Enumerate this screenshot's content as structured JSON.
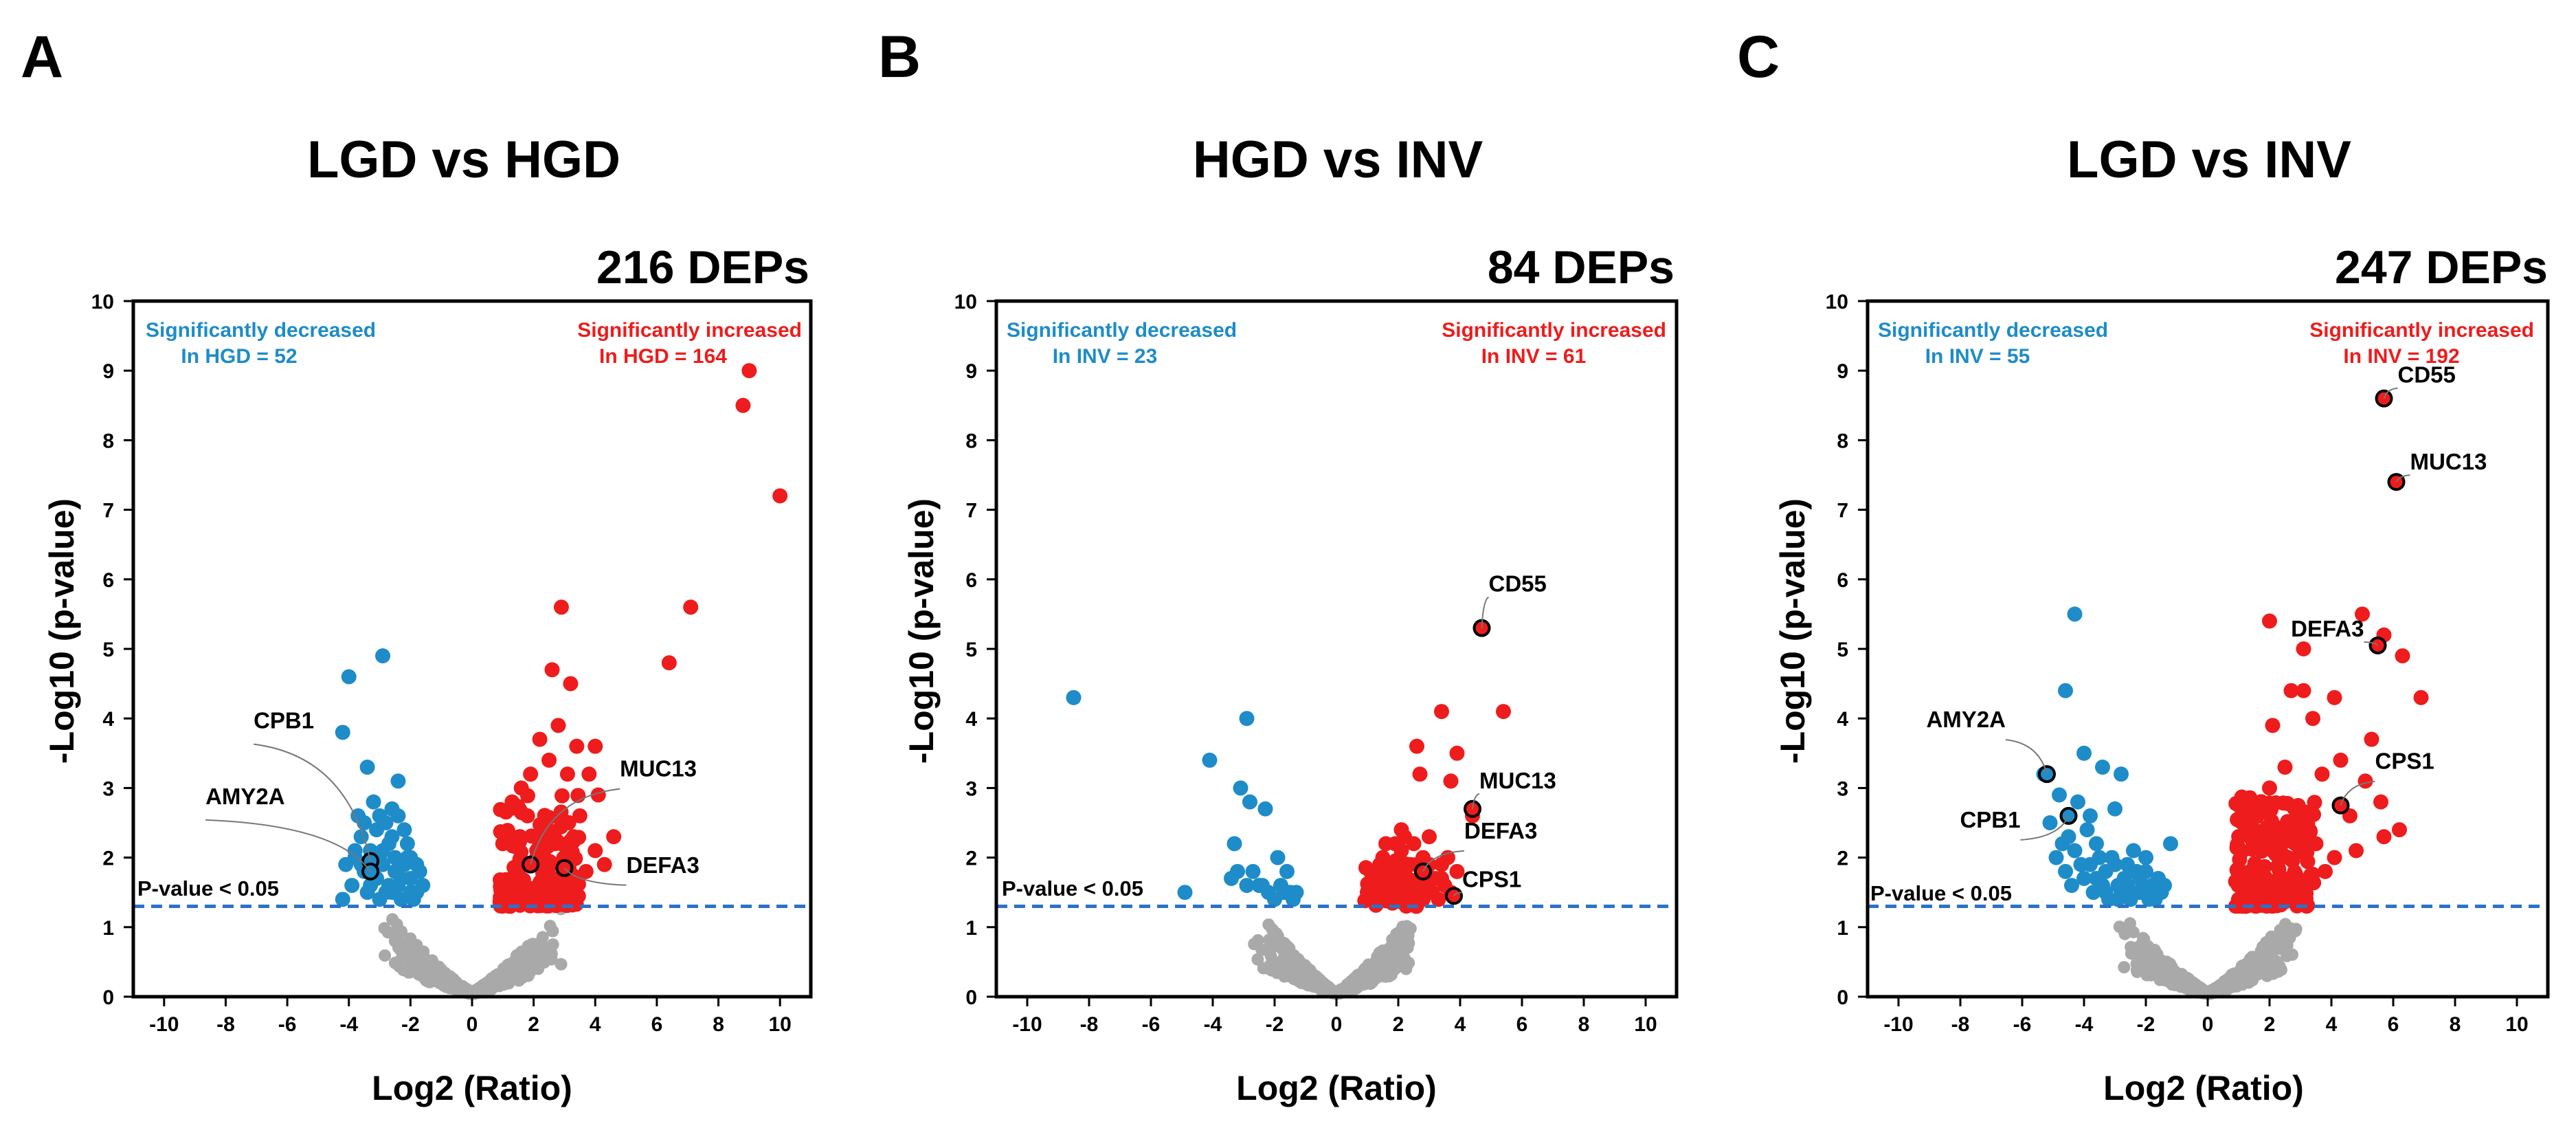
{
  "colors": {
    "decreased": "#1e8cc8",
    "increased": "#ee1c1c",
    "nonsignificant": "#a9a9a9",
    "threshold_line": "#2b73c7",
    "highlight_stroke": "#000000",
    "text": "#000000"
  },
  "chart_data": [
    {
      "type": "scatter",
      "panel": "A",
      "title": "LGD vs HGD",
      "subtitle": "216 DEPs",
      "xlabel": "Log2 (Ratio)",
      "ylabel": "-Log10 (p-value)",
      "xlim": [
        -11,
        11
      ],
      "ylim": [
        0,
        10
      ],
      "xticks": [
        -10,
        -8,
        -6,
        -4,
        -2,
        0,
        2,
        4,
        6,
        8,
        10
      ],
      "yticks": [
        0,
        1,
        2,
        3,
        4,
        5,
        6,
        7,
        8,
        9,
        10
      ],
      "threshold": {
        "y": 1.3,
        "label": "P-value < 0.05"
      },
      "legend_decreased": {
        "line1": "Significantly decreased",
        "line2": "In HGD = 52"
      },
      "legend_increased": {
        "line1": "Significantly increased",
        "line2": "In HGD = 164"
      },
      "cloud_x_max": 3.0,
      "decreased_points": [
        [
          -4.0,
          4.6
        ],
        [
          -2.9,
          4.9
        ],
        [
          -4.2,
          3.8
        ],
        [
          -3.4,
          3.3
        ],
        [
          -3.0,
          2.6
        ],
        [
          -2.6,
          2.7
        ],
        [
          -2.2,
          2.4
        ],
        [
          -3.6,
          2.3
        ],
        [
          -2.4,
          3.1
        ],
        [
          -3.8,
          2.0
        ],
        [
          -4.1,
          1.9
        ],
        [
          -2.1,
          2.0
        ],
        [
          -1.8,
          1.9
        ],
        [
          -3.3,
          2.1
        ],
        [
          -2.7,
          2.2
        ],
        [
          -2.5,
          1.8
        ],
        [
          -3.9,
          1.6
        ],
        [
          -4.2,
          1.4
        ],
        [
          -2.0,
          1.5
        ],
        [
          -1.6,
          1.6
        ],
        [
          -2.8,
          1.5
        ],
        [
          -3.1,
          1.7
        ],
        [
          -3.5,
          1.8
        ],
        [
          -2.3,
          1.7
        ],
        [
          -2.9,
          1.9
        ],
        [
          -3.7,
          2.6
        ],
        [
          -3.2,
          2.8
        ],
        [
          -2.6,
          2.3
        ],
        [
          -1.9,
          1.4
        ],
        [
          -2.4,
          1.6
        ],
        [
          -3.0,
          1.4
        ],
        [
          -3.4,
          1.5
        ],
        [
          -2.2,
          1.9
        ],
        [
          -2.8,
          2.5
        ],
        [
          -3.6,
          1.9
        ],
        [
          -2.5,
          2.0
        ],
        [
          -1.7,
          1.8
        ],
        [
          -2.1,
          2.2
        ],
        [
          -3.3,
          1.6
        ],
        [
          -2.0,
          1.7
        ],
        [
          -3.8,
          2.1
        ],
        [
          -2.7,
          1.6
        ],
        [
          -3.1,
          2.4
        ],
        [
          -2.3,
          1.4
        ],
        [
          -2.9,
          2.1
        ],
        [
          -3.5,
          2.5
        ],
        [
          -2.6,
          1.5
        ],
        [
          -1.8,
          1.5
        ],
        [
          -3.0,
          2.0
        ],
        [
          -2.4,
          2.6
        ],
        [
          -3.2,
          1.9
        ],
        [
          -2.0,
          2.0
        ]
      ],
      "increased_points": [
        [
          9.0,
          9.0
        ],
        [
          8.8,
          8.5
        ],
        [
          10.0,
          7.2
        ],
        [
          2.9,
          5.6
        ],
        [
          7.1,
          5.6
        ],
        [
          6.4,
          4.8
        ],
        [
          2.6,
          4.7
        ],
        [
          3.2,
          4.5
        ],
        [
          2.8,
          3.9
        ],
        [
          3.4,
          3.6
        ],
        [
          4.0,
          3.6
        ],
        [
          2.2,
          3.7
        ],
        [
          2.5,
          3.4
        ],
        [
          3.1,
          3.2
        ],
        [
          3.8,
          3.2
        ],
        [
          1.9,
          3.2
        ],
        [
          1.6,
          3.0
        ],
        [
          4.1,
          2.9
        ],
        [
          1.3,
          2.8
        ],
        [
          3.5,
          2.6
        ],
        [
          2.3,
          2.5
        ],
        [
          4.6,
          2.3
        ],
        [
          1.0,
          2.2
        ],
        [
          4.0,
          2.1
        ],
        [
          3.7,
          1.8
        ],
        [
          3.0,
          1.6
        ],
        [
          4.3,
          1.9
        ],
        [
          1.5,
          1.6
        ],
        [
          2.7,
          2.2
        ],
        [
          3.3,
          2.3
        ],
        [
          1.8,
          2.6
        ],
        [
          2.1,
          2.1
        ]
      ],
      "highlights": [
        {
          "label": "CPB1",
          "x": -3.3,
          "y": 1.95
        },
        {
          "label": "AMY2A",
          "x": -3.3,
          "y": 1.8
        },
        {
          "label": "MUC13",
          "x": 1.9,
          "y": 1.9
        },
        {
          "label": "DEFA3",
          "x": 3.0,
          "y": 1.85
        }
      ]
    },
    {
      "type": "scatter",
      "panel": "B",
      "title": "HGD vs INV",
      "subtitle": "84 DEPs",
      "xlabel": "Log2 (Ratio)",
      "ylabel": "-Log10 (p-value)",
      "xlim": [
        -11,
        11
      ],
      "ylim": [
        0,
        10
      ],
      "xticks": [
        -10,
        -8,
        -6,
        -4,
        -2,
        0,
        2,
        4,
        6,
        8,
        10
      ],
      "yticks": [
        0,
        1,
        2,
        3,
        4,
        5,
        6,
        7,
        8,
        9,
        10
      ],
      "threshold": {
        "y": 1.3,
        "label": "P-value < 0.05"
      },
      "legend_decreased": {
        "line1": "Significantly decreased",
        "line2": "In INV = 23"
      },
      "legend_increased": {
        "line1": "Significantly increased",
        "line2": "In INV = 61"
      },
      "cloud_x_max": 2.7,
      "decreased_points": [
        [
          -8.5,
          4.3
        ],
        [
          -4.1,
          3.4
        ],
        [
          -2.9,
          4.0
        ],
        [
          -3.1,
          3.0
        ],
        [
          -2.8,
          2.8
        ],
        [
          -2.3,
          2.7
        ],
        [
          -3.3,
          2.2
        ],
        [
          -3.2,
          1.8
        ],
        [
          -1.9,
          2.0
        ],
        [
          -4.9,
          1.5
        ],
        [
          -2.5,
          1.6
        ],
        [
          -1.8,
          1.6
        ],
        [
          -2.2,
          1.5
        ],
        [
          -1.6,
          1.8
        ],
        [
          -1.3,
          1.5
        ],
        [
          -2.7,
          1.8
        ],
        [
          -2.0,
          1.4
        ],
        [
          -1.5,
          1.5
        ],
        [
          -3.4,
          1.7
        ],
        [
          -2.4,
          1.6
        ],
        [
          -1.7,
          1.5
        ],
        [
          -2.9,
          1.6
        ],
        [
          -1.4,
          1.4
        ]
      ],
      "increased_points": [
        [
          5.4,
          4.1
        ],
        [
          3.4,
          4.1
        ],
        [
          2.6,
          3.6
        ],
        [
          3.9,
          3.5
        ],
        [
          2.7,
          3.2
        ],
        [
          3.7,
          3.1
        ],
        [
          4.4,
          2.6
        ],
        [
          3.0,
          2.3
        ],
        [
          2.1,
          2.4
        ],
        [
          3.6,
          2.0
        ],
        [
          1.6,
          2.2
        ],
        [
          2.2,
          1.8
        ],
        [
          1.9,
          1.6
        ],
        [
          3.2,
          1.7
        ],
        [
          1.4,
          1.9
        ],
        [
          2.9,
          1.5
        ],
        [
          2.4,
          1.9
        ],
        [
          1.2,
          1.6
        ],
        [
          3.4,
          1.9
        ],
        [
          2.1,
          2.1
        ],
        [
          1.7,
          1.6
        ],
        [
          2.6,
          1.6
        ],
        [
          1.3,
          1.4
        ],
        [
          3.9,
          1.8
        ],
        [
          1.0,
          1.5
        ],
        [
          2.3,
          1.4
        ],
        [
          1.8,
          1.9
        ],
        [
          2.8,
          2.0
        ],
        [
          3.1,
          1.5
        ],
        [
          2.0,
          1.7
        ],
        [
          1.5,
          1.5
        ],
        [
          2.5,
          2.2
        ],
        [
          1.1,
          1.8
        ],
        [
          3.5,
          1.6
        ],
        [
          2.2,
          1.5
        ],
        [
          1.6,
          1.4
        ],
        [
          2.7,
          1.7
        ],
        [
          1.9,
          2.2
        ],
        [
          3.3,
          1.4
        ],
        [
          2.4,
          1.6
        ],
        [
          1.4,
          1.7
        ],
        [
          2.9,
          1.8
        ],
        [
          2.0,
          1.4
        ],
        [
          1.7,
          1.8
        ],
        [
          3.7,
          1.5
        ],
        [
          2.6,
          1.9
        ],
        [
          1.2,
          1.4
        ],
        [
          2.1,
          1.5
        ],
        [
          3.0,
          1.9
        ],
        [
          1.5,
          2.0
        ],
        [
          2.3,
          1.7
        ],
        [
          1.8,
          1.5
        ],
        [
          2.8,
          1.4
        ],
        [
          3.4,
          1.7
        ],
        [
          2.5,
          1.5
        ],
        [
          1.3,
          1.6
        ],
        [
          2.2,
          2.3
        ]
      ],
      "highlights": [
        {
          "label": "CD55",
          "x": 4.7,
          "y": 5.3
        },
        {
          "label": "MUC13",
          "x": 4.4,
          "y": 2.7
        },
        {
          "label": "DEFA3",
          "x": 2.8,
          "y": 1.8
        },
        {
          "label": "CPS1",
          "x": 3.8,
          "y": 1.45
        }
      ]
    },
    {
      "type": "scatter",
      "panel": "C",
      "title": "LGD vs INV",
      "subtitle": "247 DEPs",
      "xlabel": "Log2 (Ratio)",
      "ylabel": "-Log10 (p-value)",
      "xlim": [
        -11,
        11
      ],
      "ylim": [
        0,
        10
      ],
      "xticks": [
        -10,
        -8,
        -6,
        -4,
        -2,
        0,
        2,
        4,
        6,
        8,
        10
      ],
      "yticks": [
        0,
        1,
        2,
        3,
        4,
        5,
        6,
        7,
        8,
        9,
        10
      ],
      "threshold": {
        "y": 1.3,
        "label": "P-value < 0.05"
      },
      "legend_decreased": {
        "line1": "Significantly decreased",
        "line2": "In INV = 55"
      },
      "legend_increased": {
        "line1": "Significantly increased",
        "line2": "In INV = 192"
      },
      "cloud_x_max": 3.0,
      "decreased_points": [
        [
          -4.3,
          5.5
        ],
        [
          -4.6,
          4.4
        ],
        [
          -5.3,
          3.2
        ],
        [
          -4.0,
          3.5
        ],
        [
          -3.4,
          3.3
        ],
        [
          -2.8,
          3.2
        ],
        [
          -4.8,
          2.9
        ],
        [
          -4.2,
          2.8
        ],
        [
          -3.8,
          2.6
        ],
        [
          -3.0,
          2.7
        ],
        [
          -5.1,
          2.5
        ],
        [
          -4.5,
          2.3
        ],
        [
          -3.6,
          2.2
        ],
        [
          -2.4,
          2.1
        ],
        [
          -1.2,
          2.2
        ],
        [
          -4.9,
          2.0
        ],
        [
          -4.1,
          1.9
        ],
        [
          -3.3,
          1.8
        ],
        [
          -2.6,
          1.9
        ],
        [
          -2.0,
          1.8
        ],
        [
          -1.6,
          1.7
        ],
        [
          -4.4,
          1.6
        ],
        [
          -3.7,
          1.5
        ],
        [
          -2.9,
          1.6
        ],
        [
          -2.2,
          1.5
        ],
        [
          -1.8,
          1.6
        ],
        [
          -3.2,
          1.4
        ],
        [
          -2.5,
          1.4
        ],
        [
          -1.9,
          1.4
        ],
        [
          -4.0,
          1.7
        ],
        [
          -3.5,
          2.0
        ],
        [
          -2.7,
          1.7
        ],
        [
          -2.1,
          1.6
        ],
        [
          -1.5,
          1.5
        ],
        [
          -3.9,
          2.4
        ],
        [
          -3.1,
          2.0
        ],
        [
          -2.3,
          1.8
        ],
        [
          -4.6,
          1.8
        ],
        [
          -3.4,
          1.6
        ],
        [
          -2.8,
          1.5
        ],
        [
          -2.0,
          2.0
        ],
        [
          -1.7,
          1.4
        ],
        [
          -3.6,
          1.7
        ],
        [
          -2.6,
          1.6
        ],
        [
          -4.3,
          2.1
        ],
        [
          -3.0,
          1.9
        ],
        [
          -2.4,
          1.5
        ],
        [
          -1.4,
          1.6
        ],
        [
          -3.8,
          1.9
        ],
        [
          -2.9,
          1.4
        ],
        [
          -2.2,
          1.7
        ],
        [
          -4.7,
          2.2
        ],
        [
          -3.3,
          1.5
        ],
        [
          -2.5,
          1.8
        ],
        [
          -1.9,
          1.5
        ]
      ],
      "increased_points": [
        [
          5.0,
          5.5
        ],
        [
          5.7,
          5.2
        ],
        [
          6.3,
          4.9
        ],
        [
          2.0,
          5.4
        ],
        [
          3.1,
          5.0
        ],
        [
          6.9,
          4.3
        ],
        [
          2.7,
          4.4
        ],
        [
          3.1,
          4.4
        ],
        [
          4.1,
          4.3
        ],
        [
          3.4,
          4.0
        ],
        [
          2.1,
          3.9
        ],
        [
          5.3,
          3.7
        ],
        [
          4.3,
          3.4
        ],
        [
          2.5,
          3.3
        ],
        [
          5.1,
          3.1
        ],
        [
          3.7,
          3.2
        ],
        [
          2.0,
          3.0
        ],
        [
          5.6,
          2.8
        ],
        [
          4.6,
          2.6
        ],
        [
          2.9,
          2.5
        ],
        [
          5.7,
          2.3
        ],
        [
          6.2,
          2.4
        ],
        [
          4.8,
          2.1
        ],
        [
          3.5,
          2.2
        ],
        [
          4.1,
          2.0
        ],
        [
          2.3,
          2.4
        ],
        [
          3.8,
          1.8
        ],
        [
          2.6,
          2.0
        ]
      ],
      "highlights": [
        {
          "label": "CD55",
          "x": 5.7,
          "y": 8.6
        },
        {
          "label": "MUC13",
          "x": 6.1,
          "y": 7.4
        },
        {
          "label": "DEFA3",
          "x": 5.5,
          "y": 5.05
        },
        {
          "label": "AMY2A",
          "x": -5.2,
          "y": 3.2
        },
        {
          "label": "CPS1",
          "x": 4.3,
          "y": 2.75
        },
        {
          "label": "CPB1",
          "x": -4.5,
          "y": 2.6
        }
      ]
    }
  ],
  "panel_letters": [
    "A",
    "B",
    "C"
  ]
}
